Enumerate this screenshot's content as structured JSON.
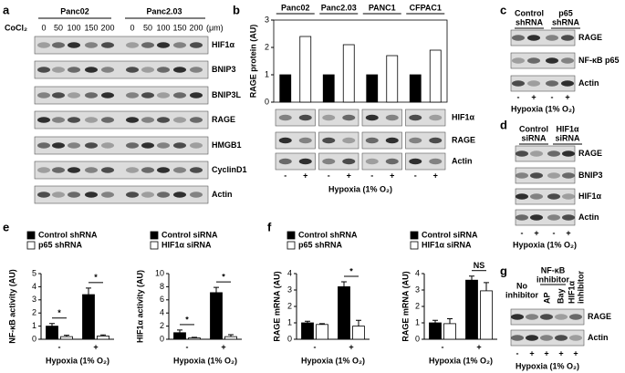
{
  "chart_data": [
    {
      "type": "bar",
      "letter": "b",
      "ylabel": "RAGE protein (AU)",
      "categories": [
        "Panc02",
        "Panc2.03",
        "PANC1",
        "CFPAC1"
      ],
      "series": [
        {
          "color": "#000000",
          "values": [
            1,
            1,
            1,
            1
          ]
        },
        {
          "color": "#ffffff",
          "values": [
            2.4,
            2.1,
            1.7,
            1.9
          ]
        }
      ],
      "ylim": [
        0,
        3
      ],
      "yticks": [
        0,
        1,
        2,
        3
      ]
    },
    {
      "type": "bar",
      "letter": "e",
      "ylabel": "NF-κB activity (AU)",
      "xlabel": "Hypoxia (1% O₂)",
      "categories": [
        "-",
        "+"
      ],
      "series": [
        {
          "name": "Control shRNA",
          "color": "#000000",
          "values": [
            1.0,
            3.4
          ],
          "errors": [
            0.2,
            0.5
          ]
        },
        {
          "name": "p65 shRNA",
          "color": "#ffffff",
          "values": [
            0.2,
            0.25
          ],
          "errors": [
            0.1,
            0.08
          ]
        }
      ],
      "ylim": [
        0,
        5
      ],
      "yticks": [
        0,
        1,
        2,
        3,
        4,
        5
      ],
      "annotations": [
        "*",
        "*"
      ]
    },
    {
      "type": "bar",
      "ylabel": "HIF1α activity (AU)",
      "xlabel": "Hypoxia (1% O₂)",
      "categories": [
        "-",
        "+"
      ],
      "series": [
        {
          "name": "Control siRNA",
          "color": "#000000",
          "values": [
            1.0,
            7.1
          ],
          "errors": [
            0.4,
            0.8
          ]
        },
        {
          "name": "HIF1α siRNA",
          "color": "#ffffff",
          "values": [
            0.2,
            0.4
          ],
          "errors": [
            0.1,
            0.3
          ]
        }
      ],
      "ylim": [
        0,
        10
      ],
      "yticks": [
        0,
        2,
        4,
        6,
        8,
        10
      ],
      "annotations": [
        "*",
        "*"
      ]
    },
    {
      "type": "bar",
      "letter": "f",
      "ylabel": "RAGE mRNA (AU)",
      "xlabel": "Hypoxia (1% O₂)",
      "categories": [
        "-",
        "+"
      ],
      "series": [
        {
          "name": "Control shRNA",
          "color": "#000000",
          "values": [
            1.0,
            3.2
          ],
          "errors": [
            0.1,
            0.3
          ]
        },
        {
          "name": "p65 shRNA",
          "color": "#ffffff",
          "values": [
            0.9,
            0.8
          ],
          "errors": [
            0.05,
            0.35
          ]
        }
      ],
      "ylim": [
        0,
        4
      ],
      "yticks": [
        0,
        1,
        2,
        3,
        4
      ],
      "annotations": [
        null,
        "*"
      ]
    },
    {
      "type": "bar",
      "ylabel": "RAGE mRNA (AU)",
      "xlabel": "Hypoxia (1% O₂)",
      "categories": [
        "-",
        "+"
      ],
      "series": [
        {
          "name": "Control siRNA",
          "color": "#000000",
          "values": [
            1.0,
            3.6
          ],
          "errors": [
            0.15,
            0.25
          ]
        },
        {
          "name": "HIF1α siRNA",
          "color": "#ffffff",
          "values": [
            0.95,
            2.95
          ],
          "errors": [
            0.3,
            0.5
          ]
        }
      ],
      "ylim": [
        0,
        4
      ],
      "yticks": [
        0,
        1,
        2,
        3,
        4
      ],
      "annotations": [
        null,
        "NS"
      ]
    }
  ],
  "blots": [
    {
      "letter": "a",
      "groups": [
        [
          "Panc02"
        ],
        [
          "Panc2.03"
        ]
      ],
      "treatment": "CoCl₂",
      "lanes": [
        "0",
        "50",
        "100",
        "150",
        "200",
        "0",
        "50",
        "100",
        "150",
        "200"
      ],
      "unit": "(μm)",
      "bands": [
        "HIF1α",
        "BNIP3",
        "BNIP3L",
        "RAGE",
        "HMGB1",
        "CyclinD1",
        "Actin"
      ]
    },
    {
      "bands": [
        "HIF1α",
        "RAGE",
        "Actin"
      ],
      "lanes": [
        "-",
        "+",
        "-",
        "+",
        "-",
        "+",
        "-",
        "+"
      ],
      "xlabel": "Hypoxia (1% O₂)"
    },
    {
      "letter": "c",
      "groups": [
        [
          "Control",
          "shRNA"
        ],
        [
          "p65",
          "shRNA"
        ]
      ],
      "bands": [
        "RAGE",
        "NF-κB p65",
        "Actin"
      ],
      "lanes": [
        "-",
        "+",
        "-",
        "+"
      ],
      "xlabel": "Hypoxia (1% O₂)"
    },
    {
      "letter": "d",
      "groups": [
        [
          "Control",
          "siRNA"
        ],
        [
          "HIF1α",
          "siRNA"
        ]
      ],
      "bands": [
        "RAGE",
        "BNIP3",
        "HIF1α",
        "Actin"
      ],
      "lanes": [
        "-",
        "+",
        "-",
        "+"
      ],
      "xlabel": "Hypoxia (1% O₂)"
    },
    {
      "letter": "g",
      "groups": [
        [
          "No",
          "inhibitor"
        ],
        [
          "NF-κB",
          "inhibitor"
        ],
        [
          "HIF1α",
          "inhibitor"
        ]
      ],
      "subgroups": [
        "AP",
        "Bay"
      ],
      "bands": [
        "RAGE",
        "Actin"
      ],
      "lanes": [
        "-",
        "+",
        "+",
        "+",
        "+"
      ],
      "xlabel": "Hypoxia (1% O₂)"
    }
  ]
}
